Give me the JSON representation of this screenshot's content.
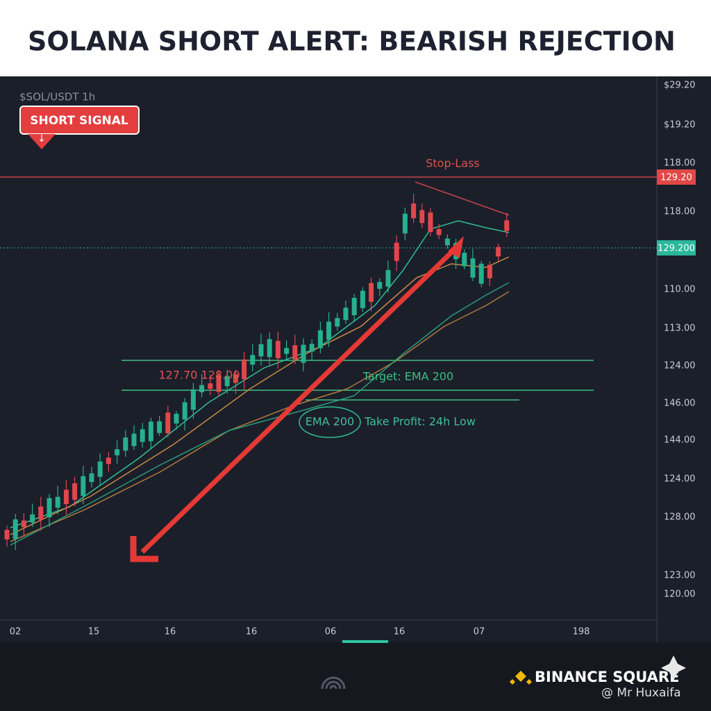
{
  "header": {
    "title": "SOLANA SHORT ALERT: BEARISH REJECTION"
  },
  "chart": {
    "symbol": "$SOL/USDT 1h",
    "badge": "SHORT SIGNAL",
    "price_labels": [
      "$29.20",
      "$19.20",
      "118.00",
      "118.00",
      "110.00",
      "113.00",
      "124.00",
      "146.00",
      "144.00",
      "124.00",
      "128.00",
      "123.00",
      "120.00"
    ],
    "time_labels": [
      "02",
      "15",
      "16",
      "16",
      "06",
      "16",
      "07",
      "198"
    ],
    "stop_loss": {
      "label": "Stop-Lass",
      "price": "129.20"
    },
    "current_price": "129.200",
    "annotations": {
      "range": "127.70 128.00",
      "target": "Target: EMA 200",
      "ema": "EMA 200",
      "take_profit": "Take Profit: 24h Low"
    }
  },
  "footer": {
    "brand": "BINANCE SQUARE",
    "author": "@ Mr Huxaifa"
  }
}
